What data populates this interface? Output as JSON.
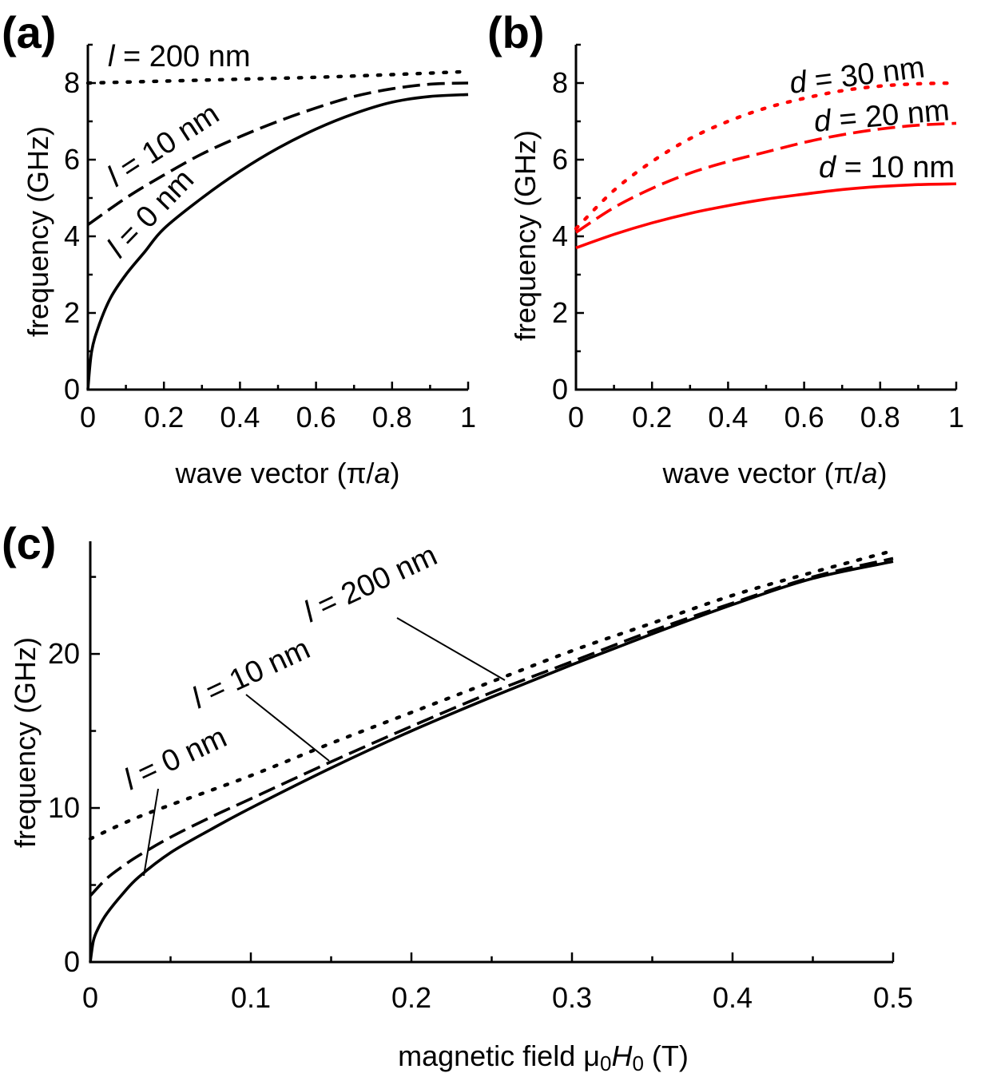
{
  "chart_data": [
    {
      "id": "a",
      "type": "line",
      "panel_label": "(a)",
      "title": "",
      "xlabel": "wave vector (π/a)",
      "xlabel_plain": "wave vector (π/",
      "xlabel_italic": "a",
      "xlabel_tail": ")",
      "ylabel": "frequency (GHz)",
      "xlim": [
        0,
        1
      ],
      "ylim": [
        0,
        9
      ],
      "xticks": [
        0,
        0.2,
        0.4,
        0.6,
        0.8,
        1
      ],
      "xtick_labels": [
        "0",
        "0.2",
        "0.4",
        "0.6",
        "0.8",
        "1"
      ],
      "yticks": [
        0,
        2,
        4,
        6,
        8
      ],
      "ytick_labels": [
        "0",
        "2",
        "4",
        "6",
        "8"
      ],
      "series": [
        {
          "label": "l = 0 nm",
          "label_var": "l",
          "label_rest": " = 0 nm",
          "style": "solid",
          "color": "#000000",
          "x": [
            0,
            0.01,
            0.03,
            0.06,
            0.1,
            0.15,
            0.2,
            0.3,
            0.4,
            0.5,
            0.6,
            0.7,
            0.8,
            0.9,
            1.0
          ],
          "y": [
            0,
            1.0,
            1.7,
            2.4,
            3.0,
            3.6,
            4.2,
            5.0,
            5.7,
            6.3,
            6.8,
            7.2,
            7.5,
            7.65,
            7.7
          ]
        },
        {
          "label": "l = 10 nm",
          "label_var": "l",
          "label_rest": " = 10 nm",
          "style": "dashed",
          "color": "#000000",
          "x": [
            0,
            0.1,
            0.2,
            0.3,
            0.4,
            0.5,
            0.6,
            0.7,
            0.8,
            0.9,
            1.0
          ],
          "y": [
            4.3,
            5.0,
            5.6,
            6.15,
            6.6,
            7.0,
            7.35,
            7.65,
            7.85,
            7.97,
            8.0
          ]
        },
        {
          "label": "l = 200 nm",
          "label_var": "l",
          "label_rest": " = 200 nm",
          "style": "dotted",
          "color": "#000000",
          "x": [
            0,
            0.2,
            0.4,
            0.6,
            0.8,
            1.0
          ],
          "y": [
            8.0,
            8.05,
            8.1,
            8.15,
            8.22,
            8.3
          ]
        }
      ]
    },
    {
      "id": "b",
      "type": "line",
      "panel_label": "(b)",
      "title": "",
      "xlabel": "wave vector (π/a)",
      "xlabel_plain": "wave vector (π/",
      "xlabel_italic": "a",
      "xlabel_tail": ")",
      "ylabel": "frequency (GHz)",
      "xlim": [
        0,
        1
      ],
      "ylim": [
        0,
        9
      ],
      "xticks": [
        0,
        0.2,
        0.4,
        0.6,
        0.8,
        1
      ],
      "xtick_labels": [
        "0",
        "0.2",
        "0.4",
        "0.6",
        "0.8",
        "1"
      ],
      "yticks": [
        0,
        2,
        4,
        6,
        8
      ],
      "ytick_labels": [
        "0",
        "2",
        "4",
        "6",
        "8"
      ],
      "series": [
        {
          "label": "d = 10 nm",
          "label_var": "d",
          "label_rest": " = 10 nm",
          "style": "solid",
          "color": "#ff0000",
          "x": [
            0,
            0.1,
            0.2,
            0.3,
            0.4,
            0.5,
            0.6,
            0.7,
            0.8,
            0.9,
            1.0
          ],
          "y": [
            3.7,
            4.05,
            4.35,
            4.6,
            4.8,
            4.97,
            5.1,
            5.22,
            5.3,
            5.35,
            5.37
          ]
        },
        {
          "label": "d = 20 nm",
          "label_var": "d",
          "label_rest": " = 20 nm",
          "style": "dashed",
          "color": "#ff0000",
          "x": [
            0,
            0.1,
            0.2,
            0.3,
            0.4,
            0.5,
            0.6,
            0.7,
            0.8,
            0.9,
            1.0
          ],
          "y": [
            4.1,
            4.75,
            5.25,
            5.65,
            5.95,
            6.2,
            6.45,
            6.65,
            6.8,
            6.9,
            6.95
          ]
        },
        {
          "label": "d = 30 nm",
          "label_var": "d",
          "label_rest": " = 30 nm",
          "style": "dotted",
          "color": "#ff0000",
          "x": [
            0,
            0.1,
            0.2,
            0.3,
            0.4,
            0.5,
            0.6,
            0.7,
            0.8,
            0.9,
            1.0
          ],
          "y": [
            4.2,
            5.2,
            5.95,
            6.55,
            7.0,
            7.35,
            7.6,
            7.8,
            7.92,
            7.98,
            8.0
          ]
        }
      ]
    },
    {
      "id": "c",
      "type": "line",
      "panel_label": "(c)",
      "title": "",
      "xlabel": "magnetic field μ0H0 (T)",
      "ylabel": "frequency (GHz)",
      "xlim": [
        0,
        0.5
      ],
      "ylim": [
        0,
        27
      ],
      "xticks": [
        0,
        0.1,
        0.2,
        0.3,
        0.4,
        0.5
      ],
      "xtick_labels": [
        "0",
        "0.1",
        "0.2",
        "0.3",
        "0.4",
        "0.5"
      ],
      "yticks": [
        0,
        10,
        20
      ],
      "ytick_labels": [
        "0",
        "10",
        "20"
      ],
      "series": [
        {
          "label": "l = 0 nm",
          "label_var": "l",
          "label_rest": " = 0 nm",
          "style": "solid",
          "color": "#000000",
          "x": [
            0,
            0.002,
            0.005,
            0.01,
            0.02,
            0.03,
            0.05,
            0.075,
            0.1,
            0.15,
            0.2,
            0.25,
            0.3,
            0.35,
            0.4,
            0.45,
            0.5
          ],
          "y": [
            0,
            1.4,
            2.2,
            3.1,
            4.4,
            5.5,
            7.1,
            8.6,
            10.0,
            12.6,
            15.0,
            17.2,
            19.3,
            21.3,
            23.2,
            24.9,
            26.0
          ]
        },
        {
          "label": "l = 10 nm",
          "label_var": "l",
          "label_rest": " = 10 nm",
          "style": "dashed",
          "color": "#000000",
          "x": [
            0,
            0.01,
            0.02,
            0.03,
            0.05,
            0.075,
            0.1,
            0.15,
            0.2,
            0.25,
            0.3,
            0.35,
            0.4,
            0.45,
            0.5
          ],
          "y": [
            4.3,
            5.4,
            6.2,
            6.9,
            8.1,
            9.4,
            10.6,
            13.0,
            15.3,
            17.5,
            19.5,
            21.5,
            23.3,
            25.0,
            26.2
          ]
        },
        {
          "label": "l = 200 nm",
          "label_var": "l",
          "label_rest": " = 200 nm",
          "style": "dotted",
          "color": "#000000",
          "x": [
            0,
            0.025,
            0.05,
            0.1,
            0.15,
            0.2,
            0.25,
            0.3,
            0.35,
            0.4,
            0.45,
            0.5
          ],
          "y": [
            8.0,
            9.2,
            10.2,
            12.1,
            14.2,
            16.2,
            18.2,
            20.2,
            22.0,
            23.8,
            25.3,
            26.7
          ]
        }
      ]
    }
  ]
}
